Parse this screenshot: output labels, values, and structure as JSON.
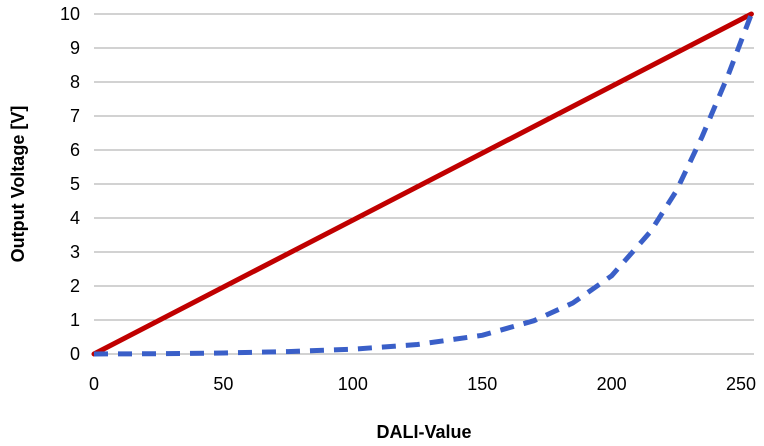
{
  "chart_data": {
    "type": "line",
    "title": "",
    "xlabel": "DALI-Value",
    "ylabel": "Output Voltage [V]",
    "xlim": [
      0,
      255
    ],
    "ylim": [
      0,
      10
    ],
    "x_ticks": [
      "0",
      "50",
      "100",
      "150",
      "200",
      "250"
    ],
    "y_ticks": [
      "0",
      "1",
      "2",
      "3",
      "4",
      "5",
      "6",
      "7",
      "8",
      "9",
      "10"
    ],
    "grid": "horizontal",
    "legend": "none",
    "series": [
      {
        "style": "solid",
        "color": "#c00000",
        "x": [
          0,
          254
        ],
        "y": [
          0,
          10
        ]
      },
      {
        "style": "dashed",
        "color": "#3a5fc8",
        "x": [
          0,
          25,
          50,
          75,
          100,
          125,
          150,
          170,
          185,
          200,
          215,
          225,
          235,
          245,
          254
        ],
        "y": [
          0,
          0.01,
          0.03,
          0.07,
          0.14,
          0.28,
          0.55,
          0.98,
          1.5,
          2.3,
          3.6,
          4.8,
          6.4,
          8.2,
          10
        ]
      }
    ]
  }
}
